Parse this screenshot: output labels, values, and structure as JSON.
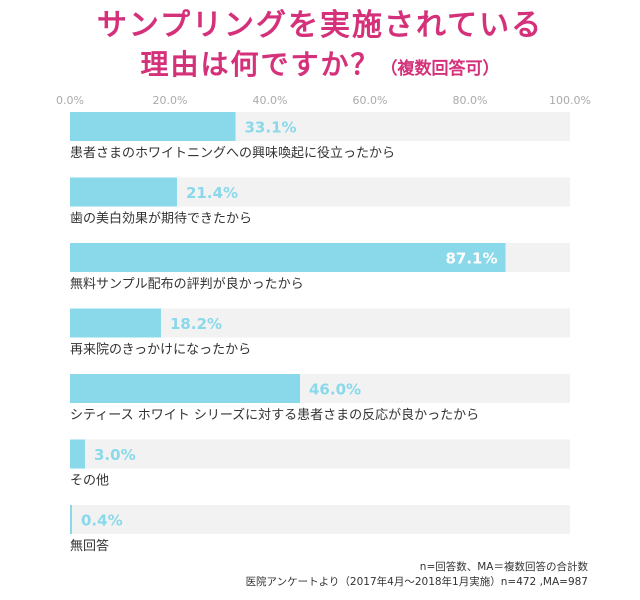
{
  "title": {
    "line1": "サンプリングを実施されている",
    "line2_main": "理由は何ですか？",
    "line2_sub": "（複数回答可）"
  },
  "colors": {
    "accent": "#d4317a",
    "bar": "#8ad9ea",
    "track": "#f2f2f2",
    "value_text": "#8ad9ea",
    "value_text_inside": "#ffffff"
  },
  "notes": {
    "line1": "n=回答数、MA＝複数回答の合計数",
    "line2": "医院アンケートより（2017年4月～2018年1月実施）n=472 ,MA=987"
  },
  "chart_data": {
    "type": "bar",
    "orientation": "horizontal",
    "xlim": [
      0,
      100
    ],
    "ticks": [
      "0.0%",
      "20.0%",
      "40.0%",
      "60.0%",
      "80.0%",
      "100.0%"
    ],
    "grid": true,
    "categories": [
      "患者さまのホワイトニングへの興味喚起に役立ったから",
      "歯の美白効果が期待できたから",
      "無料サンプル配布の評判が良かったから",
      "再来院のきっかけになったから",
      "シティース ホワイト シリーズに対する患者さまの反応が良かったから",
      "その他",
      "無回答"
    ],
    "values": [
      33.1,
      21.4,
      87.1,
      18.2,
      46.0,
      3.0,
      0.4
    ],
    "value_labels": [
      "33.1%",
      "21.4%",
      "87.1%",
      "18.2%",
      "46.0%",
      "3.0%",
      "0.4%"
    ]
  }
}
